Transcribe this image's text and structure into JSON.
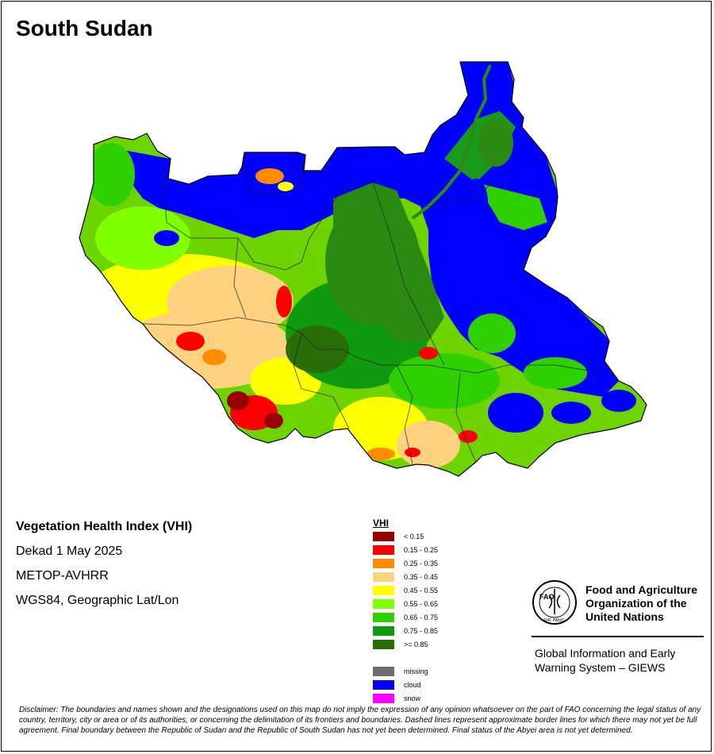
{
  "map": {
    "title": "South Sudan",
    "info_lines": [
      "Vegetation Health Index (VHI)",
      "Dekad 1 May 2025",
      "METOP-AVHRR",
      "WGS84, Geographic Lat/Lon"
    ]
  },
  "legend": {
    "title": "VHI",
    "classes": [
      {
        "label": "< 0.15",
        "color": "#990000"
      },
      {
        "label": "0.15 - 0.25",
        "color": "#ff0000"
      },
      {
        "label": "0.25 - 0.35",
        "color": "#ff8c00"
      },
      {
        "label": "0.35 - 0.45",
        "color": "#ffd27f"
      },
      {
        "label": "0.45 - 0.55",
        "color": "#ffff00"
      },
      {
        "label": "0.55 - 0.65",
        "color": "#80ff00"
      },
      {
        "label": "0.65 - 0.75",
        "color": "#2ed000"
      },
      {
        "label": "0.75 - 0.85",
        "color": "#0f9a0f"
      },
      {
        "label": ">= 0.85",
        "color": "#2a6e0a"
      }
    ],
    "extra": [
      {
        "label": "missing",
        "color": "#6e6e6e"
      },
      {
        "label": "cloud",
        "color": "#0000ff"
      },
      {
        "label": "snow",
        "color": "#ff00ff"
      }
    ]
  },
  "organization": {
    "logo_text": "FAO",
    "logo_motto": "FIAT PANIS",
    "name_lines": [
      "Food and Agriculture",
      "Organization of the",
      "United Nations"
    ],
    "system_lines": [
      "Global Information and Early",
      "Warning System – GIEWS"
    ]
  },
  "disclaimer": "Disclaimer: The boundaries and names shown and the designations used on this map do not imply the expression of any opinion whatsoever on the part of FAO concerning the legal status of any country, territory, city or area or of its authorities, or concerning the delimitation of its frontiers and boundaries. Dashed lines represent approximate border lines for which there may not yet be full agreement.  Final boundary between the Republic of Sudan and the Republic of South Sudan has not yet been determined. Final status of the Abyei area is not yet determined."
}
